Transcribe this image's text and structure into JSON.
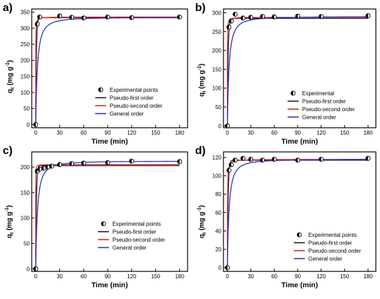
{
  "panels": [
    {
      "label": "a)",
      "ylabel_base": "q",
      "ylabel_sub": "t",
      "ylabel_rest": " (mg g",
      "ylabel_sup": "-1",
      "ylabel_end": ")",
      "xlabel": "Time (min)"
    },
    {
      "label": "b)",
      "ylabel_base": "q",
      "ylabel_sub": "t",
      "ylabel_rest": " (mg g",
      "ylabel_sup": "-1",
      "ylabel_end": ")",
      "xlabel": "Time (min)"
    },
    {
      "label": "c)",
      "ylabel_base": "q",
      "ylabel_sub": "t",
      "ylabel_rest": " (mg g",
      "ylabel_sup": "-1",
      "ylabel_end": ")",
      "xlabel": "Time (min)"
    },
    {
      "label": "d)",
      "ylabel_base": "q",
      "ylabel_sub": "t",
      "ylabel_rest": " (mg g",
      "ylabel_sup": "-1",
      "ylabel_end": ")",
      "xlabel": "Time (min)"
    }
  ],
  "colors": {
    "pfo": "#1a1a1a",
    "pso": "#e02020",
    "general": "#2233bb",
    "marker": "#000000",
    "axis": "#000000"
  },
  "chart_data": [
    {
      "type": "scatter",
      "xlabel": "Time (min)",
      "ylabel": "qt (mg g-1)",
      "xlim": [
        -5,
        190
      ],
      "ylim": [
        -10,
        360
      ],
      "xticks": [
        0,
        30,
        60,
        90,
        120,
        150,
        180
      ],
      "yticks": [
        0,
        50,
        100,
        150,
        200,
        250,
        300,
        350
      ],
      "grid": false,
      "legend_position": "center-right",
      "legend": [
        "Experimental points",
        "Pseudo-first order",
        "Pseudo-second order",
        "General order"
      ],
      "experimental": {
        "x": [
          0,
          2,
          5,
          30,
          45,
          60,
          90,
          120,
          180
        ],
        "y": [
          0,
          313,
          335,
          338,
          334,
          332,
          335,
          333,
          335
        ]
      },
      "series": [
        {
          "name": "Pseudo-first order",
          "qe": 333,
          "k": 1.2
        },
        {
          "name": "Pseudo-second order",
          "qe": 335,
          "k": 0.05
        },
        {
          "name": "General order",
          "qe": 334,
          "k": 0.3
        }
      ]
    },
    {
      "type": "scatter",
      "xlabel": "Time (min)",
      "ylabel": "qt (mg g-1)",
      "xlim": [
        -5,
        190
      ],
      "ylim": [
        -5,
        310
      ],
      "xticks": [
        0,
        30,
        60,
        90,
        120,
        150,
        180
      ],
      "yticks": [
        0,
        50,
        100,
        150,
        200,
        250,
        300
      ],
      "grid": false,
      "legend_position": "center-right",
      "legend": [
        "Experimental",
        "Pseudo-first order",
        "Pseudo-second order",
        "General order"
      ],
      "experimental": {
        "x": [
          0,
          2,
          5,
          10,
          20,
          30,
          45,
          60,
          90,
          120,
          180
        ],
        "y": [
          0,
          262,
          278,
          296,
          286,
          288,
          290,
          289,
          291,
          290,
          292
        ]
      },
      "series": [
        {
          "name": "Pseudo-first order",
          "qe": 285,
          "k": 1.0
        },
        {
          "name": "Pseudo-second order",
          "qe": 288,
          "k": 0.05
        },
        {
          "name": "General order",
          "qe": 290,
          "k": 0.3
        }
      ]
    },
    {
      "type": "scatter",
      "xlabel": "Time (min)",
      "ylabel": "qt (mg g-1)",
      "xlim": [
        -5,
        190
      ],
      "ylim": [
        -5,
        230
      ],
      "xticks": [
        0,
        30,
        60,
        90,
        120,
        150,
        180
      ],
      "yticks": [
        0,
        50,
        100,
        150,
        200
      ],
      "grid": false,
      "legend_position": "center-right",
      "legend": [
        "Experimental points",
        "Pseudo-first order",
        "Pseudo-second order",
        "General order"
      ],
      "experimental": {
        "x": [
          0,
          2,
          5,
          10,
          15,
          20,
          30,
          45,
          60,
          90,
          120,
          180
        ],
        "y": [
          0,
          192,
          196,
          198,
          200,
          202,
          205,
          207,
          208,
          209,
          212,
          211
        ]
      },
      "series": [
        {
          "name": "Pseudo-first order",
          "qe": 203,
          "k": 1.2
        },
        {
          "name": "Pseudo-second order",
          "qe": 205,
          "k": 0.2
        },
        {
          "name": "General order",
          "qe": 212,
          "k": 0.3
        }
      ]
    },
    {
      "type": "scatter",
      "xlabel": "Time (min)",
      "ylabel": "qt (mg g-1)",
      "xlim": [
        -5,
        190
      ],
      "ylim": [
        -4,
        126
      ],
      "xticks": [
        0,
        30,
        60,
        90,
        120,
        150,
        180
      ],
      "yticks": [
        0,
        20,
        40,
        60,
        80,
        100,
        120
      ],
      "grid": false,
      "legend_position": "center-right",
      "legend": [
        "Experimental points",
        "Pseudo-first order",
        "Pseudo-second order",
        "General order"
      ],
      "experimental": {
        "x": [
          0,
          2,
          5,
          10,
          20,
          30,
          45,
          60,
          90,
          120,
          180
        ],
        "y": [
          0,
          106,
          112,
          117,
          119,
          118,
          117,
          118,
          117,
          118,
          119
        ]
      },
      "series": [
        {
          "name": "Pseudo-first order",
          "qe": 117,
          "k": 1.0
        },
        {
          "name": "Pseudo-second order",
          "qe": 118,
          "k": 0.05
        },
        {
          "name": "General order",
          "qe": 118,
          "k": 0.3
        }
      ]
    }
  ]
}
